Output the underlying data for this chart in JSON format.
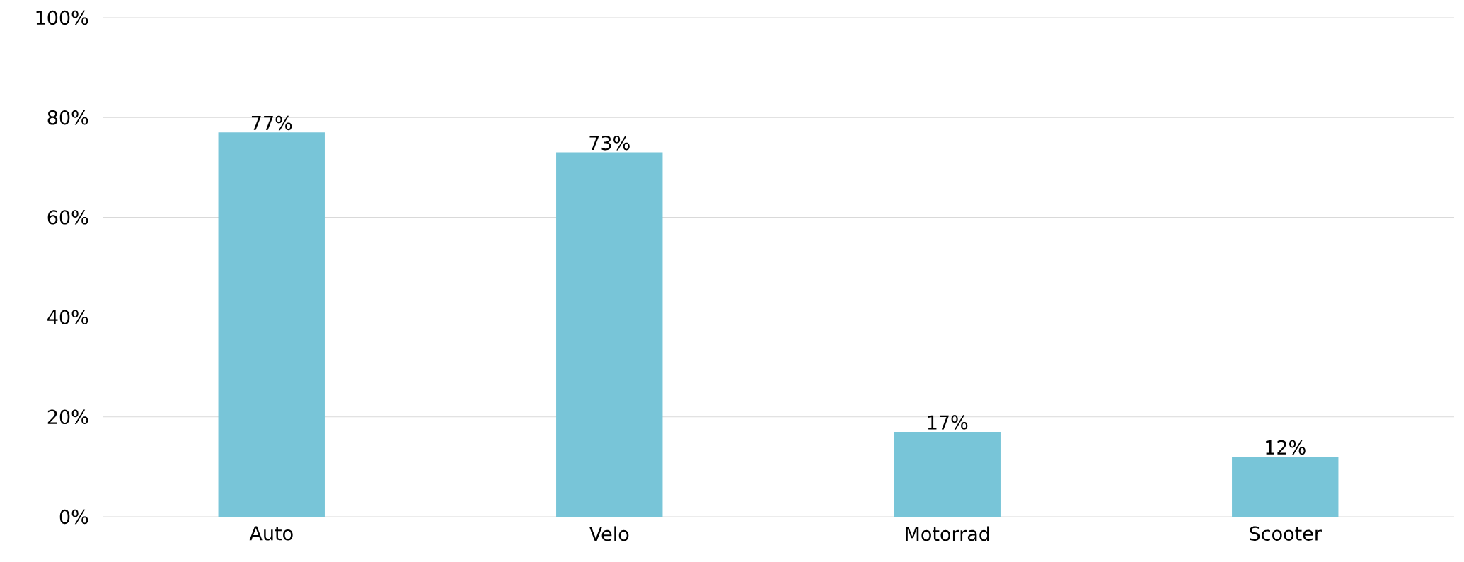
{
  "chart_data": {
    "type": "bar",
    "categories": [
      "Auto",
      "Velo",
      "Motorrad",
      "Scooter"
    ],
    "values": [
      77,
      73,
      17,
      12
    ],
    "value_labels": [
      "77%",
      "73%",
      "17%",
      "12%"
    ],
    "color": "#78c5d8",
    "ylim": [
      0,
      100
    ],
    "yticks": [
      {
        "value": 0,
        "label": "0%"
      },
      {
        "value": 20,
        "label": "20%"
      },
      {
        "value": 40,
        "label": "40%"
      },
      {
        "value": 60,
        "label": "60%"
      },
      {
        "value": 80,
        "label": "80%"
      },
      {
        "value": 100,
        "label": "100%"
      }
    ],
    "grid": "y"
  }
}
